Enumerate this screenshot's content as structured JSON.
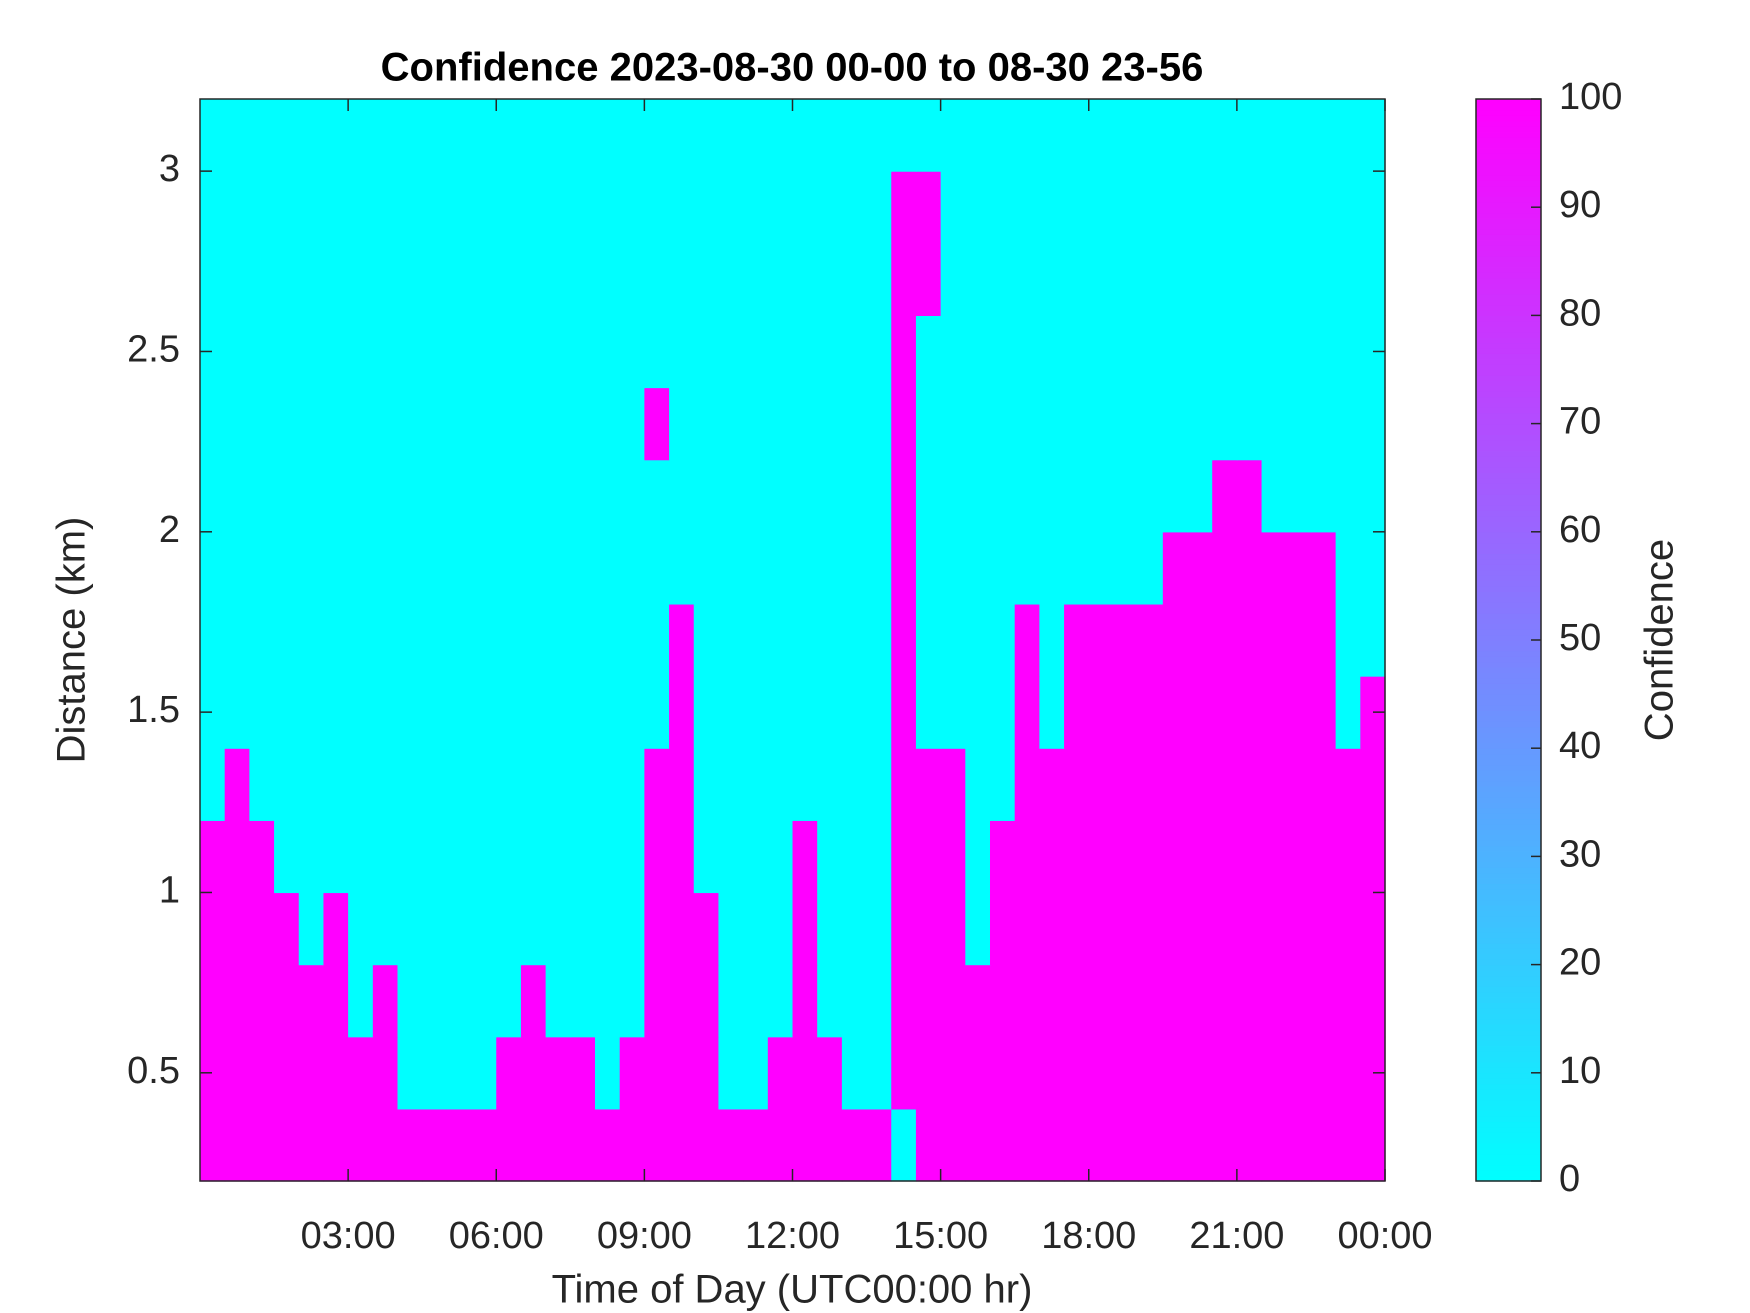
{
  "chart_data": {
    "type": "heatmap",
    "title": "Confidence 2023-08-30 00-00 to 08-30 23-56",
    "xlabel": "Time of Day (UTC00:00 hr)",
    "ylabel": "Distance (km)",
    "colormap": "cool",
    "x": [
      0.25,
      0.75,
      1.25,
      1.75,
      2.25,
      2.75,
      3.25,
      3.75,
      4.25,
      4.75,
      5.25,
      5.75,
      6.25,
      6.75,
      7.25,
      7.75,
      8.25,
      8.75,
      9.25,
      9.75,
      10.25,
      10.75,
      11.25,
      11.75,
      12.25,
      12.75,
      13.25,
      13.75,
      14.25,
      14.75,
      15.25,
      15.75,
      16.25,
      16.75,
      17.25,
      17.75,
      18.25,
      18.75,
      19.25,
      19.75,
      20.25,
      20.75,
      21.25,
      21.75,
      22.25,
      22.75,
      23.25,
      23.75
    ],
    "y": [
      0.3,
      0.5,
      0.7,
      0.9,
      1.1,
      1.3,
      1.5,
      1.7,
      1.9,
      2.1,
      2.3,
      2.5,
      2.7,
      2.9,
      3.1
    ],
    "z": [
      [
        100,
        100,
        100,
        100,
        100,
        100,
        100,
        100,
        100,
        100,
        100,
        100,
        100,
        100,
        100,
        100,
        100,
        100,
        100,
        100,
        100,
        100,
        100,
        100,
        100,
        100,
        100,
        100,
        0,
        100,
        100,
        100,
        100,
        100,
        100,
        100,
        100,
        100,
        100,
        100,
        100,
        100,
        100,
        100,
        100,
        100,
        100,
        100
      ],
      [
        100,
        100,
        100,
        100,
        100,
        100,
        100,
        100,
        0,
        0,
        0,
        0,
        100,
        100,
        100,
        100,
        0,
        100,
        100,
        100,
        100,
        0,
        0,
        100,
        100,
        100,
        0,
        0,
        100,
        100,
        100,
        100,
        100,
        100,
        100,
        100,
        100,
        100,
        100,
        100,
        100,
        100,
        100,
        100,
        100,
        100,
        100,
        100
      ],
      [
        100,
        100,
        100,
        100,
        100,
        100,
        0,
        100,
        0,
        0,
        0,
        0,
        0,
        100,
        0,
        0,
        0,
        0,
        100,
        100,
        100,
        0,
        0,
        0,
        100,
        0,
        0,
        0,
        100,
        100,
        100,
        100,
        100,
        100,
        100,
        100,
        100,
        100,
        100,
        100,
        100,
        100,
        100,
        100,
        100,
        100,
        100,
        100
      ],
      [
        100,
        100,
        100,
        100,
        0,
        100,
        0,
        0,
        0,
        0,
        0,
        0,
        0,
        0,
        0,
        0,
        0,
        0,
        100,
        100,
        100,
        0,
        0,
        0,
        100,
        0,
        0,
        0,
        100,
        100,
        100,
        0,
        100,
        100,
        100,
        100,
        100,
        100,
        100,
        100,
        100,
        100,
        100,
        100,
        100,
        100,
        100,
        100
      ],
      [
        100,
        100,
        100,
        0,
        0,
        0,
        0,
        0,
        0,
        0,
        0,
        0,
        0,
        0,
        0,
        0,
        0,
        0,
        100,
        100,
        0,
        0,
        0,
        0,
        100,
        0,
        0,
        0,
        100,
        100,
        100,
        0,
        100,
        100,
        100,
        100,
        100,
        100,
        100,
        100,
        100,
        100,
        100,
        100,
        100,
        100,
        100,
        100
      ],
      [
        0,
        100,
        0,
        0,
        0,
        0,
        0,
        0,
        0,
        0,
        0,
        0,
        0,
        0,
        0,
        0,
        0,
        0,
        100,
        100,
        0,
        0,
        0,
        0,
        0,
        0,
        0,
        0,
        100,
        100,
        100,
        0,
        0,
        100,
        100,
        100,
        100,
        100,
        100,
        100,
        100,
        100,
        100,
        100,
        100,
        100,
        100,
        100
      ],
      [
        0,
        0,
        0,
        0,
        0,
        0,
        0,
        0,
        0,
        0,
        0,
        0,
        0,
        0,
        0,
        0,
        0,
        0,
        0,
        100,
        0,
        0,
        0,
        0,
        0,
        0,
        0,
        0,
        100,
        0,
        0,
        0,
        0,
        100,
        0,
        100,
        100,
        100,
        100,
        100,
        100,
        100,
        100,
        100,
        100,
        100,
        0,
        100
      ],
      [
        0,
        0,
        0,
        0,
        0,
        0,
        0,
        0,
        0,
        0,
        0,
        0,
        0,
        0,
        0,
        0,
        0,
        0,
        0,
        100,
        0,
        0,
        0,
        0,
        0,
        0,
        0,
        0,
        100,
        0,
        0,
        0,
        0,
        100,
        0,
        100,
        100,
        100,
        100,
        100,
        100,
        100,
        100,
        100,
        100,
        100,
        0,
        0
      ],
      [
        0,
        0,
        0,
        0,
        0,
        0,
        0,
        0,
        0,
        0,
        0,
        0,
        0,
        0,
        0,
        0,
        0,
        0,
        0,
        0,
        0,
        0,
        0,
        0,
        0,
        0,
        0,
        0,
        100,
        0,
        0,
        0,
        0,
        0,
        0,
        0,
        0,
        0,
        0,
        100,
        100,
        100,
        100,
        100,
        100,
        100,
        0,
        0
      ],
      [
        0,
        0,
        0,
        0,
        0,
        0,
        0,
        0,
        0,
        0,
        0,
        0,
        0,
        0,
        0,
        0,
        0,
        0,
        0,
        0,
        0,
        0,
        0,
        0,
        0,
        0,
        0,
        0,
        100,
        0,
        0,
        0,
        0,
        0,
        0,
        0,
        0,
        0,
        0,
        0,
        0,
        100,
        100,
        0,
        0,
        0,
        0,
        0
      ],
      [
        0,
        0,
        0,
        0,
        0,
        0,
        0,
        0,
        0,
        0,
        0,
        0,
        0,
        0,
        0,
        0,
        0,
        0,
        100,
        0,
        0,
        0,
        0,
        0,
        0,
        0,
        0,
        0,
        100,
        0,
        0,
        0,
        0,
        0,
        0,
        0,
        0,
        0,
        0,
        0,
        0,
        0,
        0,
        0,
        0,
        0,
        0,
        0
      ],
      [
        0,
        0,
        0,
        0,
        0,
        0,
        0,
        0,
        0,
        0,
        0,
        0,
        0,
        0,
        0,
        0,
        0,
        0,
        0,
        0,
        0,
        0,
        0,
        0,
        0,
        0,
        0,
        0,
        100,
        0,
        0,
        0,
        0,
        0,
        0,
        0,
        0,
        0,
        0,
        0,
        0,
        0,
        0,
        0,
        0,
        0,
        0,
        0
      ],
      [
        0,
        0,
        0,
        0,
        0,
        0,
        0,
        0,
        0,
        0,
        0,
        0,
        0,
        0,
        0,
        0,
        0,
        0,
        0,
        0,
        0,
        0,
        0,
        0,
        0,
        0,
        0,
        0,
        100,
        100,
        0,
        0,
        0,
        0,
        0,
        0,
        0,
        0,
        0,
        0,
        0,
        0,
        0,
        0,
        0,
        0,
        0,
        0
      ],
      [
        0,
        0,
        0,
        0,
        0,
        0,
        0,
        0,
        0,
        0,
        0,
        0,
        0,
        0,
        0,
        0,
        0,
        0,
        0,
        0,
        0,
        0,
        0,
        0,
        0,
        0,
        0,
        0,
        100,
        100,
        0,
        0,
        0,
        0,
        0,
        0,
        0,
        0,
        0,
        0,
        0,
        0,
        0,
        0,
        0,
        0,
        0,
        0
      ],
      [
        0,
        0,
        0,
        0,
        0,
        0,
        0,
        0,
        0,
        0,
        0,
        0,
        0,
        0,
        0,
        0,
        0,
        0,
        0,
        0,
        0,
        0,
        0,
        0,
        0,
        0,
        0,
        0,
        0,
        0,
        0,
        0,
        0,
        0,
        0,
        0,
        0,
        0,
        0,
        0,
        0,
        0,
        0,
        0,
        0,
        0,
        0,
        0
      ]
    ],
    "xlim": [
      0,
      24
    ],
    "xticks": [
      {
        "value": 3,
        "label": "03:00"
      },
      {
        "value": 6,
        "label": "06:00"
      },
      {
        "value": 9,
        "label": "09:00"
      },
      {
        "value": 12,
        "label": "12:00"
      },
      {
        "value": 15,
        "label": "15:00"
      },
      {
        "value": 18,
        "label": "18:00"
      },
      {
        "value": 21,
        "label": "21:00"
      },
      {
        "value": 24,
        "label": "00:00"
      }
    ],
    "ylim": [
      0.2,
      3.2
    ],
    "yticks": [
      0.5,
      1,
      1.5,
      2,
      2.5,
      3
    ],
    "colorbar": {
      "label": "Confidence",
      "clim": [
        0,
        100
      ],
      "ticks": [
        0,
        10,
        20,
        30,
        40,
        50,
        60,
        70,
        80,
        90,
        100
      ]
    }
  }
}
